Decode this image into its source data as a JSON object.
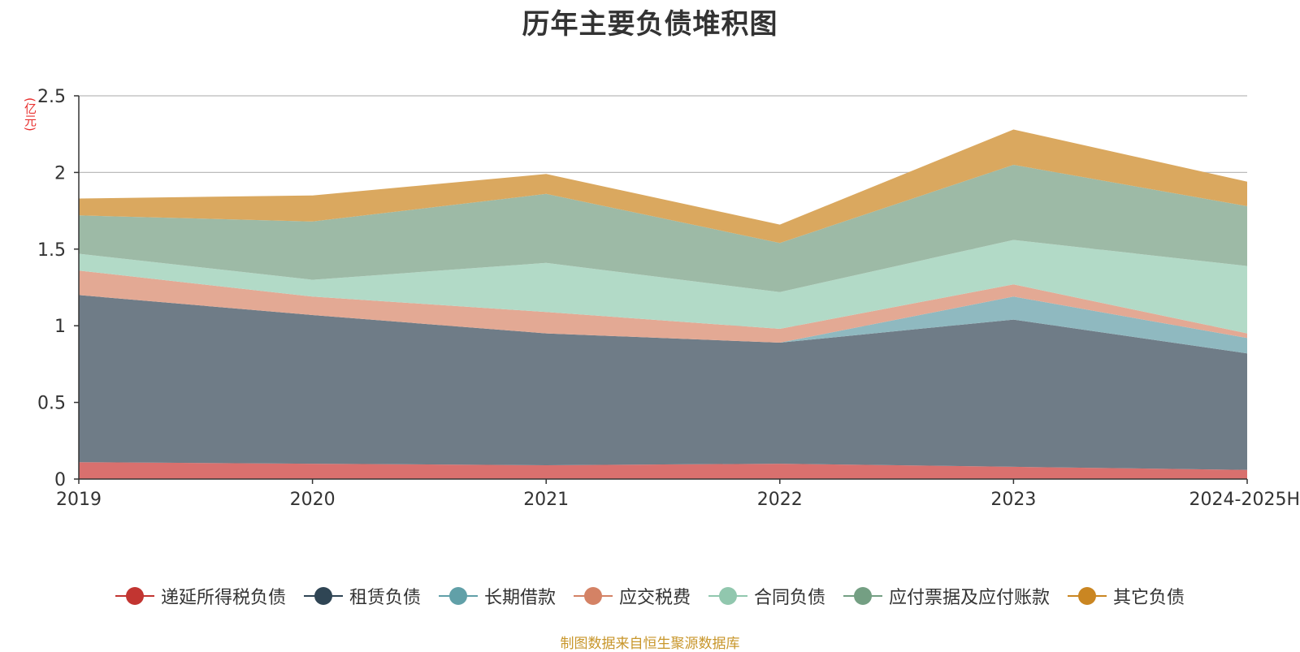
{
  "chart_data": {
    "type": "area",
    "title": "历年主要负债堆积图",
    "ylabel": "(亿元)",
    "categories": [
      "2019",
      "2020",
      "2021",
      "2022",
      "2023",
      "2024-2025H"
    ],
    "ylim": [
      0,
      2.5
    ],
    "yticks": [
      "0",
      "0.5",
      "1",
      "1.5",
      "2",
      "2.5"
    ],
    "ytick_values": [
      0,
      0.5,
      1,
      1.5,
      2,
      2.5
    ],
    "stacked": true,
    "grid": true,
    "legend_position": "bottom",
    "series": [
      {
        "name": "递延所得税负债",
        "values": [
          0.11,
          0.1,
          0.09,
          0.1,
          0.08,
          0.06
        ],
        "color": "#d9706e",
        "legend_color": "#c23531"
      },
      {
        "name": "租赁负债",
        "values": [
          1.09,
          0.97,
          0.86,
          0.79,
          0.96,
          0.76
        ],
        "color": "#6f7c87",
        "legend_color": "#2f4554"
      },
      {
        "name": "长期借款",
        "values": [
          0.0,
          0.0,
          0.0,
          0.0,
          0.15,
          0.1
        ],
        "color": "#8fb9c0",
        "legend_color": "#61a0a8"
      },
      {
        "name": "应交税费",
        "values": [
          0.16,
          0.12,
          0.14,
          0.09,
          0.08,
          0.03
        ],
        "color": "#e3a994",
        "legend_color": "#d48265"
      },
      {
        "name": "合同负债",
        "values": [
          0.11,
          0.11,
          0.32,
          0.24,
          0.29,
          0.44
        ],
        "color": "#b2dac7",
        "legend_color": "#91c7ae"
      },
      {
        "name": "应付票据及应付账款",
        "values": [
          0.25,
          0.38,
          0.45,
          0.32,
          0.49,
          0.39
        ],
        "color": "#9dbaa6",
        "legend_color": "#749f83"
      },
      {
        "name": "其它负债",
        "values": [
          0.11,
          0.17,
          0.13,
          0.12,
          0.23,
          0.16
        ],
        "color": "#daa85f",
        "legend_color": "#ca8622"
      }
    ]
  },
  "footer": {
    "source": "制图数据来自恒生聚源数据库"
  }
}
